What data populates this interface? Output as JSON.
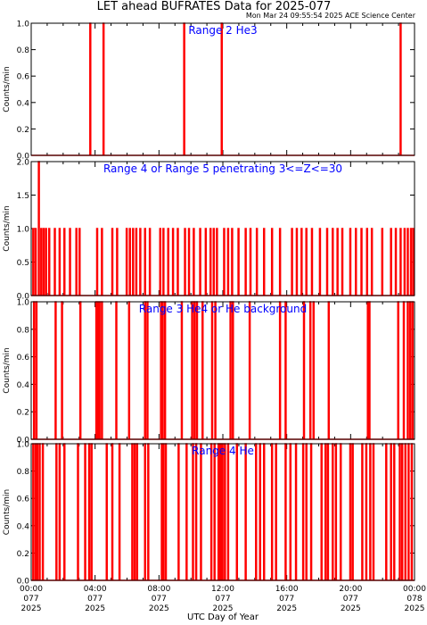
{
  "title": "LET ahead BUFRATES Data for 2025-077",
  "timestamp": "Mon Mar 24 09:55:54 2025 ACE Science Center",
  "colors": {
    "trace": "#ff0000",
    "label": "#0000ff",
    "axes": "#000000",
    "background": "#ffffff"
  },
  "x_axis": {
    "label": "UTC Day of Year",
    "ticks": [
      {
        "time": "00:00",
        "doy": "077",
        "year": "2025"
      },
      {
        "time": "04:00",
        "doy": "077",
        "year": "2025"
      },
      {
        "time": "08:00",
        "doy": "077",
        "year": "2025"
      },
      {
        "time": "12:00",
        "doy": "077",
        "year": "2025"
      },
      {
        "time": "16:00",
        "doy": "077",
        "year": "2025"
      },
      {
        "time": "20:00",
        "doy": "077",
        "year": "2025"
      },
      {
        "time": "00:00",
        "doy": "078",
        "year": "2025"
      }
    ]
  },
  "chart_data": [
    {
      "type": "line",
      "title": "Range 2 He3",
      "ylabel": "Counts/min",
      "xlim_hours": [
        0,
        24
      ],
      "ylim": [
        0,
        1.0
      ],
      "yticks": [
        "0.0",
        "0.2",
        "0.4",
        "0.6",
        "0.8",
        "1.0"
      ],
      "series": [
        {
          "values_at_hours": [
            [
              3.67,
              1
            ],
            [
              4.5,
              1
            ],
            [
              9.55,
              1
            ],
            [
              11.9,
              1
            ],
            [
              23.1,
              1
            ]
          ]
        }
      ]
    },
    {
      "type": "line",
      "title": "Range 4 or Range 5 penetrating 3<=Z<=30",
      "ylabel": "Counts/min",
      "xlim_hours": [
        0,
        24
      ],
      "ylim": [
        0,
        2.0
      ],
      "yticks": [
        "0.0",
        "0.5",
        "1.0",
        "1.5",
        "2.0"
      ],
      "series": [
        {
          "values_at_hours": [
            [
              0.1,
              1
            ],
            [
              0.25,
              1
            ],
            [
              0.45,
              2
            ],
            [
              0.6,
              1
            ],
            [
              0.75,
              1
            ],
            [
              0.9,
              1
            ],
            [
              1.1,
              1
            ],
            [
              1.45,
              1
            ],
            [
              1.75,
              1
            ],
            [
              2.05,
              1
            ],
            [
              2.4,
              1
            ],
            [
              2.8,
              1
            ],
            [
              3.0,
              1
            ],
            [
              4.1,
              1
            ],
            [
              4.4,
              1
            ],
            [
              5.05,
              1
            ],
            [
              5.35,
              1
            ],
            [
              5.95,
              1
            ],
            [
              6.15,
              1
            ],
            [
              6.35,
              1
            ],
            [
              6.55,
              1
            ],
            [
              6.8,
              1
            ],
            [
              7.1,
              1
            ],
            [
              7.4,
              1
            ],
            [
              8.05,
              1
            ],
            [
              8.25,
              1
            ],
            [
              8.55,
              1
            ],
            [
              8.85,
              1
            ],
            [
              9.15,
              1
            ],
            [
              9.6,
              1
            ],
            [
              9.85,
              1
            ],
            [
              10.15,
              1
            ],
            [
              10.55,
              1
            ],
            [
              10.9,
              1
            ],
            [
              11.2,
              1
            ],
            [
              11.4,
              1
            ],
            [
              11.6,
              1
            ],
            [
              12.05,
              1
            ],
            [
              12.3,
              1
            ],
            [
              12.55,
              1
            ],
            [
              12.95,
              1
            ],
            [
              13.4,
              1
            ],
            [
              13.7,
              1
            ],
            [
              14.1,
              1
            ],
            [
              14.55,
              1
            ],
            [
              15.05,
              1
            ],
            [
              15.55,
              1
            ],
            [
              16.3,
              1
            ],
            [
              16.6,
              1
            ],
            [
              16.9,
              1
            ],
            [
              17.2,
              1
            ],
            [
              17.55,
              1
            ],
            [
              18.05,
              1
            ],
            [
              18.5,
              1
            ],
            [
              18.85,
              1
            ],
            [
              19.15,
              1
            ],
            [
              19.45,
              1
            ],
            [
              19.95,
              1
            ],
            [
              20.3,
              1
            ],
            [
              20.65,
              1
            ],
            [
              21.0,
              1
            ],
            [
              21.3,
              1
            ],
            [
              21.95,
              1
            ],
            [
              22.5,
              1
            ],
            [
              22.8,
              1
            ],
            [
              23.1,
              1
            ],
            [
              23.35,
              1
            ],
            [
              23.55,
              1
            ],
            [
              23.75,
              1
            ],
            [
              23.9,
              1
            ]
          ]
        }
      ]
    },
    {
      "type": "line",
      "title": "Range 3 He4 or He background",
      "ylabel": "Counts/min",
      "xlim_hours": [
        0,
        24
      ],
      "ylim": [
        0,
        1.0
      ],
      "yticks": [
        "0.0",
        "0.2",
        "0.4",
        "0.6",
        "0.8",
        "1.0"
      ],
      "series": [
        {
          "values_at_hours": [
            [
              0.15,
              1
            ],
            [
              0.3,
              1
            ],
            [
              1.5,
              1
            ],
            [
              1.9,
              1
            ],
            [
              3.05,
              1
            ],
            [
              4.05,
              1
            ],
            [
              4.15,
              1
            ],
            [
              4.25,
              1
            ],
            [
              4.4,
              1
            ],
            [
              5.3,
              1
            ],
            [
              6.1,
              1
            ],
            [
              7.1,
              1
            ],
            [
              7.25,
              1
            ],
            [
              8.1,
              1
            ],
            [
              8.2,
              1
            ],
            [
              8.35,
              1
            ],
            [
              9.4,
              1
            ],
            [
              10.05,
              1
            ],
            [
              10.2,
              1
            ],
            [
              10.35,
              1
            ],
            [
              10.7,
              1
            ],
            [
              11.3,
              1
            ],
            [
              11.5,
              1
            ],
            [
              12.45,
              1
            ],
            [
              12.6,
              1
            ],
            [
              13.65,
              1
            ],
            [
              15.55,
              1
            ],
            [
              15.9,
              1
            ],
            [
              17.05,
              1
            ],
            [
              17.45,
              1
            ],
            [
              17.65,
              1
            ],
            [
              18.6,
              1
            ],
            [
              21.05,
              1
            ],
            [
              21.15,
              1
            ],
            [
              22.95,
              1
            ],
            [
              23.3,
              1
            ],
            [
              23.55,
              1
            ],
            [
              23.7,
              1
            ],
            [
              23.85,
              1
            ]
          ]
        }
      ]
    },
    {
      "type": "line",
      "title": "Range 4 He",
      "ylabel": "Counts/min",
      "xlim_hours": [
        0,
        24
      ],
      "ylim": [
        0,
        1.0
      ],
      "yticks": [
        "0.0",
        "0.2",
        "0.4",
        "0.6",
        "0.8",
        "1.0"
      ],
      "series": [
        {
          "values_at_hours": [
            [
              0.1,
              1
            ],
            [
              0.25,
              1
            ],
            [
              0.35,
              1
            ],
            [
              0.5,
              1
            ],
            [
              0.7,
              1
            ],
            [
              1.55,
              1
            ],
            [
              1.75,
              1
            ],
            [
              2.05,
              1
            ],
            [
              2.9,
              1
            ],
            [
              3.35,
              1
            ],
            [
              3.6,
              1
            ],
            [
              3.75,
              1
            ],
            [
              4.7,
              1
            ],
            [
              5.05,
              1
            ],
            [
              5.5,
              1
            ],
            [
              6.3,
              1
            ],
            [
              6.45,
              1
            ],
            [
              6.6,
              1
            ],
            [
              7.1,
              1
            ],
            [
              7.3,
              1
            ],
            [
              8.15,
              1
            ],
            [
              8.25,
              1
            ],
            [
              8.4,
              1
            ],
            [
              9.2,
              1
            ],
            [
              9.7,
              1
            ],
            [
              10.1,
              1
            ],
            [
              10.3,
              1
            ],
            [
              10.6,
              1
            ],
            [
              11.25,
              1
            ],
            [
              11.45,
              1
            ],
            [
              11.7,
              1
            ],
            [
              11.82,
              1
            ],
            [
              11.95,
              1
            ],
            [
              12.1,
              1
            ],
            [
              12.3,
              1
            ],
            [
              12.85,
              1
            ],
            [
              13.4,
              1
            ],
            [
              14.05,
              1
            ],
            [
              14.3,
              1
            ],
            [
              14.55,
              1
            ],
            [
              15.05,
              1
            ],
            [
              15.3,
              1
            ],
            [
              15.9,
              1
            ],
            [
              16.2,
              1
            ],
            [
              16.55,
              1
            ],
            [
              17.0,
              1
            ],
            [
              17.2,
              1
            ],
            [
              17.5,
              1
            ],
            [
              18.15,
              1
            ],
            [
              18.4,
              1
            ],
            [
              18.55,
              1
            ],
            [
              18.85,
              1
            ],
            [
              19.05,
              1
            ],
            [
              19.35,
              1
            ],
            [
              19.95,
              1
            ],
            [
              20.1,
              1
            ],
            [
              20.7,
              1
            ],
            [
              20.95,
              1
            ],
            [
              21.2,
              1
            ],
            [
              21.4,
              1
            ],
            [
              22.2,
              1
            ],
            [
              22.5,
              1
            ],
            [
              22.7,
              1
            ],
            [
              23.05,
              1
            ],
            [
              23.2,
              1
            ],
            [
              23.4,
              1
            ],
            [
              23.6,
              1
            ],
            [
              23.8,
              1
            ]
          ]
        }
      ]
    }
  ]
}
